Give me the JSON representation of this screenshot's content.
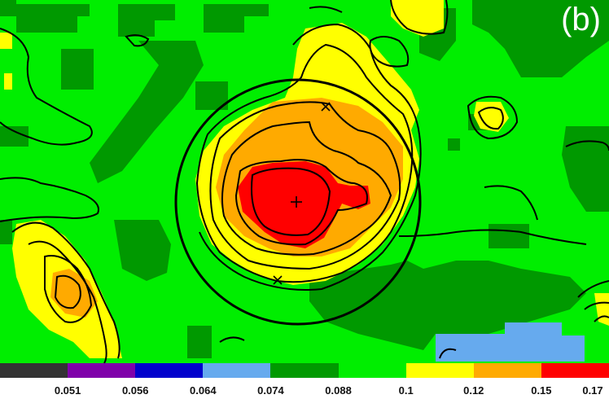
{
  "panel_label": "(b)",
  "colors": {
    "background_level": "#00ee00",
    "dark_green": "#009900",
    "yellow": "#ffff00",
    "orange": "#ffaa00",
    "red": "#ff0000",
    "light_blue": "#66aaee",
    "contour": "#000000"
  },
  "colorbar": {
    "segments": [
      "#333333",
      "#7f00aa",
      "#0000cc",
      "#66aaee",
      "#009900",
      "#00ee00",
      "#ffff00",
      "#ffaa00",
      "#ff0000"
    ],
    "tick_labels": [
      "0.051",
      "0.056",
      "0.064",
      "0.074",
      "0.088",
      "0.1",
      "0.12",
      "0.15",
      "0.17"
    ]
  },
  "markers": [
    {
      "symbol": "plus",
      "label": "center"
    },
    {
      "symbol": "x",
      "label": "upper"
    },
    {
      "symbol": "x",
      "label": "lower"
    }
  ]
}
